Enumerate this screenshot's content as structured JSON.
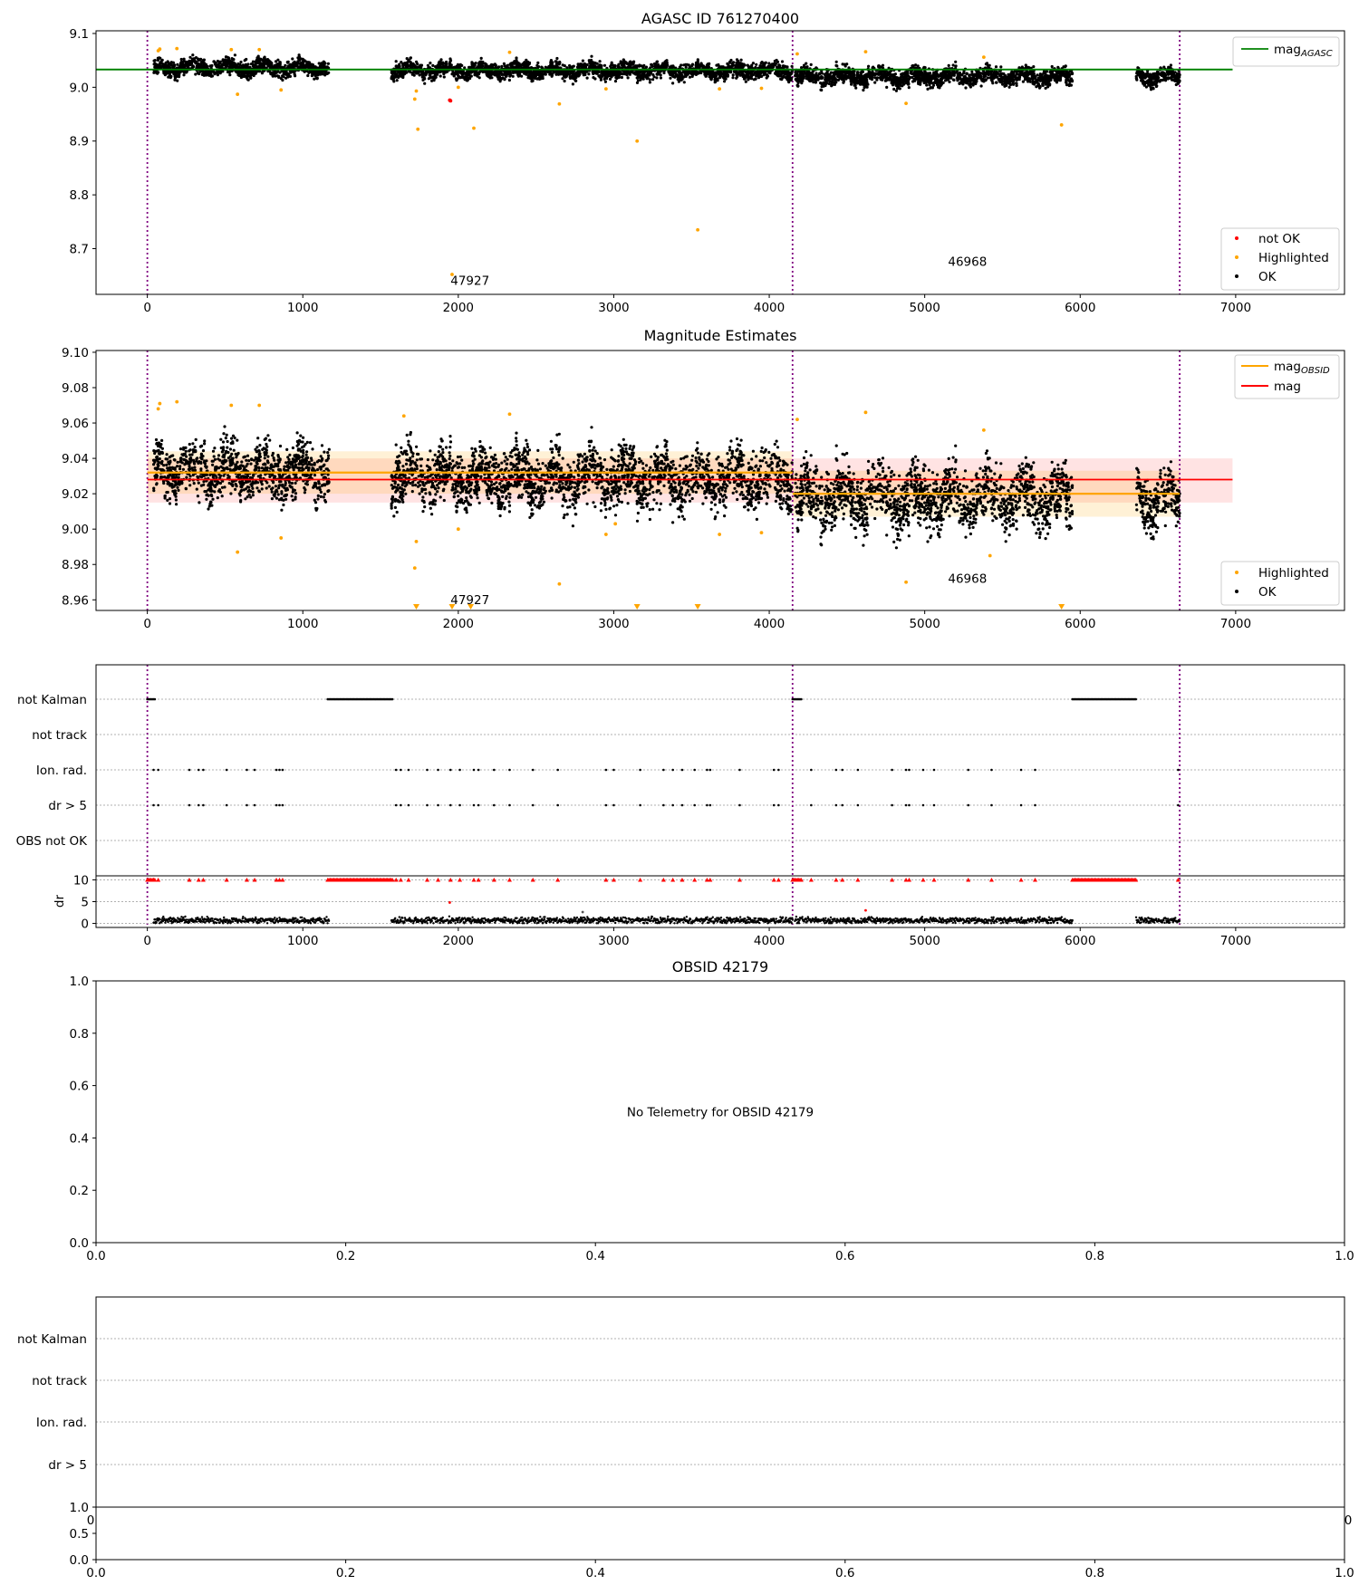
{
  "chart_data": [
    {
      "type": "scatter",
      "title": "AGASC ID 761270400",
      "xlim": [
        -330,
        7700
      ],
      "ylim": [
        8.615,
        9.105
      ],
      "xticks": [
        0,
        1000,
        2000,
        3000,
        4000,
        5000,
        6000,
        7000
      ],
      "yticks": [
        9.1,
        9.0,
        8.9,
        8.8,
        8.7
      ],
      "ytick_labels": [
        "9.1",
        "9.0",
        "8.9",
        "8.8",
        "8.7"
      ],
      "vlines": [
        0,
        4150,
        6640
      ],
      "obsid_labels": [
        {
          "text": "47927",
          "x": 2075,
          "y": 8.633
        },
        {
          "text": "46968",
          "x": 5275,
          "y": 8.668
        }
      ],
      "agasc_mag": 9.033,
      "agasc_span": [
        -330,
        6980
      ],
      "ok_segments": [
        {
          "x0": 40,
          "x1": 1170,
          "center": 9.036,
          "spread": 0.013
        },
        {
          "x0": 1570,
          "x1": 4150,
          "center": 9.031,
          "spread": 0.013
        },
        {
          "x0": 4165,
          "x1": 5950,
          "center": 9.02,
          "spread": 0.014
        },
        {
          "x0": 6360,
          "x1": 6640,
          "center": 9.02,
          "spread": 0.013
        }
      ],
      "highlighted_points": [
        {
          "x": 70,
          "y": 9.068
        },
        {
          "x": 80,
          "y": 9.071
        },
        {
          "x": 190,
          "y": 9.072
        },
        {
          "x": 540,
          "y": 9.07
        },
        {
          "x": 580,
          "y": 8.987
        },
        {
          "x": 720,
          "y": 9.07
        },
        {
          "x": 860,
          "y": 8.995
        },
        {
          "x": 1720,
          "y": 8.978
        },
        {
          "x": 1730,
          "y": 8.993
        },
        {
          "x": 1740,
          "y": 8.922
        },
        {
          "x": 2000,
          "y": 9.0
        },
        {
          "x": 2100,
          "y": 8.924
        },
        {
          "x": 2330,
          "y": 9.065
        },
        {
          "x": 2650,
          "y": 8.969
        },
        {
          "x": 2950,
          "y": 8.997
        },
        {
          "x": 3150,
          "y": 8.9
        },
        {
          "x": 3540,
          "y": 8.735
        },
        {
          "x": 3680,
          "y": 8.997
        },
        {
          "x": 3950,
          "y": 8.998
        },
        {
          "x": 4180,
          "y": 9.062
        },
        {
          "x": 4620,
          "y": 9.066
        },
        {
          "x": 4880,
          "y": 8.97
        },
        {
          "x": 5380,
          "y": 9.056
        },
        {
          "x": 5880,
          "y": 8.93
        },
        {
          "x": 1960,
          "y": 8.652
        }
      ],
      "not_ok_points": [
        {
          "x": 1945,
          "y": 8.976
        },
        {
          "x": 1950,
          "y": 8.975
        }
      ],
      "legend_line": {
        "label": "mag",
        "subscript": "AGASC",
        "color": "#008000"
      },
      "legend_points": [
        {
          "label": "not OK",
          "color": "#ff0000"
        },
        {
          "label": "Highlighted",
          "color": "#ffa500"
        },
        {
          "label": "OK",
          "color": "#000000"
        }
      ]
    },
    {
      "type": "scatter",
      "title": "Magnitude Estimates",
      "xlim": [
        -330,
        7700
      ],
      "ylim": [
        8.954,
        9.101
      ],
      "xticks": [
        0,
        1000,
        2000,
        3000,
        4000,
        5000,
        6000,
        7000
      ],
      "yticks": [
        9.1,
        9.08,
        9.06,
        9.04,
        9.02,
        9.0,
        8.98,
        8.96
      ],
      "ytick_labels": [
        "9.10",
        "9.08",
        "9.06",
        "9.04",
        "9.02",
        "9.00",
        "8.98",
        "8.96"
      ],
      "vlines": [
        0,
        4150,
        6640
      ],
      "obsid_labels": [
        {
          "text": "47927",
          "x": 2075,
          "y": 8.9575
        },
        {
          "text": "46968",
          "x": 5275,
          "y": 8.9695
        }
      ],
      "mag_line": {
        "y": 9.028,
        "band": [
          9.015,
          9.04
        ],
        "span": [
          0,
          6980
        ],
        "color": "#ff0000"
      },
      "mag_obsid": [
        {
          "x0": 0,
          "x1": 4150,
          "y": 9.032,
          "band": [
            9.02,
            9.044
          ]
        },
        {
          "x0": 4150,
          "x1": 6640,
          "y": 9.02,
          "band": [
            9.007,
            9.033
          ]
        }
      ],
      "ok_segments": [
        {
          "x0": 40,
          "x1": 1170,
          "center": 9.033,
          "spread": 0.013
        },
        {
          "x0": 1570,
          "x1": 4150,
          "center": 9.029,
          "spread": 0.014
        },
        {
          "x0": 4165,
          "x1": 5950,
          "center": 9.018,
          "spread": 0.015
        },
        {
          "x0": 6360,
          "x1": 6640,
          "center": 9.017,
          "spread": 0.013
        }
      ],
      "highlighted_points": [
        {
          "x": 70,
          "y": 9.068
        },
        {
          "x": 80,
          "y": 9.071
        },
        {
          "x": 190,
          "y": 9.072
        },
        {
          "x": 540,
          "y": 9.07
        },
        {
          "x": 580,
          "y": 8.987
        },
        {
          "x": 720,
          "y": 9.07
        },
        {
          "x": 860,
          "y": 8.995
        },
        {
          "x": 1650,
          "y": 9.064
        },
        {
          "x": 1720,
          "y": 8.978
        },
        {
          "x": 1730,
          "y": 8.993
        },
        {
          "x": 2000,
          "y": 9.0
        },
        {
          "x": 2330,
          "y": 9.065
        },
        {
          "x": 2650,
          "y": 8.969
        },
        {
          "x": 2950,
          "y": 8.997
        },
        {
          "x": 3010,
          "y": 9.003
        },
        {
          "x": 3680,
          "y": 8.997
        },
        {
          "x": 3950,
          "y": 8.998
        },
        {
          "x": 4180,
          "y": 9.062
        },
        {
          "x": 4620,
          "y": 9.066
        },
        {
          "x": 4880,
          "y": 8.97
        },
        {
          "x": 5380,
          "y": 9.056
        },
        {
          "x": 5420,
          "y": 8.985
        }
      ],
      "clipped_low_x": [
        1730,
        1960,
        2080,
        3150,
        3540,
        5880
      ],
      "legend_lines": [
        {
          "label": "mag",
          "subscript": "OBSID",
          "color": "#ffa500"
        },
        {
          "label": "mag",
          "subscript": "",
          "color": "#ff0000"
        }
      ],
      "legend_points": [
        {
          "label": "Highlighted",
          "color": "#ffa500"
        },
        {
          "label": "OK",
          "color": "#000000"
        }
      ]
    },
    {
      "type": "scatter",
      "title": "",
      "xlim": [
        -330,
        7700
      ],
      "xticks": [
        0,
        1000,
        2000,
        3000,
        4000,
        5000,
        6000,
        7000
      ],
      "flag_rows": [
        "not Kalman",
        "not track",
        "Ion. rad.",
        "dr > 5",
        "OBS not OK"
      ],
      "not_kalman_ranges": [
        [
          0,
          50
        ],
        [
          1160,
          1580
        ],
        [
          4150,
          4210
        ],
        [
          5950,
          6360
        ]
      ],
      "ion_rad_x": [
        40,
        70,
        270,
        330,
        360,
        510,
        640,
        690,
        830,
        850,
        870,
        1600,
        1630,
        1680,
        1800,
        1870,
        1950,
        2010,
        2100,
        2130,
        2230,
        2330,
        2480,
        2640,
        2950,
        3000,
        3170,
        3320,
        3380,
        3440,
        3520,
        3600,
        3620,
        3810,
        4030,
        4060,
        4270,
        4430,
        4470,
        4570,
        4790,
        4880,
        4900,
        4990,
        5060,
        5280,
        5430,
        5620,
        5710,
        6630
      ],
      "dr_yticks": [
        10,
        5,
        0
      ],
      "dr_ylim": [
        -0.3,
        10.3
      ],
      "dr_ylabel": "dr",
      "dr_outliers": [
        {
          "x": 1945,
          "y": 4.8
        },
        {
          "x": 2800,
          "y": 2.6
        },
        {
          "x": 4620,
          "y": 3.0
        }
      ]
    },
    {
      "type": "scatter",
      "title": "OBSID 42179",
      "message": "No Telemetry for OBSID 42179",
      "xlim": [
        0,
        1
      ],
      "ylim": [
        0,
        1
      ],
      "xticks": [
        0.0,
        0.2,
        0.4,
        0.6,
        0.8,
        1.0
      ],
      "xtick_labels": [
        "0.0",
        "0.2",
        "0.4",
        "0.6",
        "0.8",
        "1.0"
      ],
      "yticks": [
        1.0,
        0.8,
        0.6,
        0.4,
        0.2,
        0.0
      ],
      "ytick_labels": [
        "1.0",
        "0.8",
        "0.6",
        "0.4",
        "0.2",
        "0.0"
      ]
    },
    {
      "type": "scatter",
      "title": "",
      "flag_rows": [
        "not Kalman",
        "not track",
        "Ion. rad.",
        "dr > 5"
      ],
      "overlap_x_labels": [
        "0",
        "0"
      ],
      "xticks": [
        0.0,
        0.2,
        0.4,
        0.6,
        0.8,
        1.0
      ],
      "xtick_labels": [
        "0.0",
        "0.2",
        "0.4",
        "0.6",
        "0.8",
        "1.0"
      ],
      "yticks": [
        1.0,
        0.5,
        0.0
      ],
      "ytick_labels": [
        "1.0",
        "0.5",
        "0.0"
      ]
    }
  ]
}
